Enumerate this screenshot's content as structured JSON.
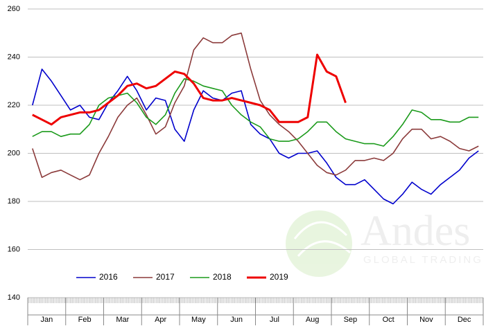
{
  "chart_data": {
    "type": "line",
    "categories": [
      null,
      "Jan",
      null,
      null,
      null,
      "Feb",
      null,
      null,
      null,
      "Mar",
      null,
      null,
      null,
      "Apr",
      null,
      null,
      null,
      "May",
      null,
      null,
      null,
      "Jun",
      null,
      null,
      null,
      "Jul",
      null,
      null,
      null,
      "Aug",
      null,
      null,
      null,
      "Sep",
      null,
      null,
      null,
      "Oct",
      null,
      null,
      null,
      "Nov",
      null,
      null,
      null,
      "Dec",
      null,
      null
    ],
    "series": [
      {
        "name": "2016",
        "color": "#0000cc",
        "values": [
          220,
          235,
          230,
          224,
          218,
          220,
          215,
          214,
          221,
          226,
          232,
          226,
          218,
          223,
          222,
          210,
          205,
          218,
          226,
          223,
          222,
          225,
          226,
          212,
          208,
          206,
          200,
          198,
          200,
          200,
          201,
          196,
          190,
          187,
          187,
          189,
          185,
          181,
          179,
          183,
          188,
          185,
          183,
          187,
          190,
          193,
          198,
          201
        ]
      },
      {
        "name": "2017",
        "color": "#8b3a3a",
        "values": [
          202,
          190,
          192,
          193,
          191,
          189,
          191,
          200,
          207,
          215,
          220,
          223,
          216,
          208,
          211,
          221,
          228,
          243,
          248,
          246,
          246,
          249,
          250,
          235,
          222,
          216,
          212,
          209,
          205,
          200,
          195,
          192,
          191,
          193,
          197,
          197,
          198,
          197,
          200,
          206,
          210,
          210,
          206,
          207,
          205,
          202,
          201,
          203
        ]
      },
      {
        "name": "2018",
        "color": "#1a9a1a",
        "values": [
          207,
          209,
          209,
          207,
          208,
          208,
          212,
          220,
          223,
          224,
          225,
          221,
          215,
          212,
          216,
          225,
          231,
          230,
          228,
          227,
          226,
          220,
          216,
          213,
          211,
          206,
          205,
          205,
          206,
          209,
          213,
          213,
          209,
          206,
          205,
          204,
          204,
          203,
          207,
          212,
          218,
          217,
          214,
          214,
          213,
          213,
          215,
          215
        ]
      },
      {
        "name": "2019",
        "color": "#ee0000",
        "values": [
          216,
          214,
          212,
          215,
          216,
          217,
          217,
          218,
          221,
          224,
          228,
          229,
          227,
          228,
          231,
          234,
          233,
          229,
          223,
          222,
          222,
          223,
          222,
          221,
          220,
          218,
          213,
          213,
          213,
          215,
          241,
          234,
          232,
          221,
          null,
          null,
          null,
          null,
          null,
          null,
          null,
          null,
          null,
          null,
          null,
          null,
          null,
          null
        ]
      }
    ],
    "ylim": [
      140,
      260
    ],
    "yticks": [
      140,
      160,
      180,
      200,
      220,
      240,
      260
    ],
    "grid": true,
    "watermark": {
      "title": "Andes",
      "subtitle": "GLOBAL TRADING"
    }
  }
}
